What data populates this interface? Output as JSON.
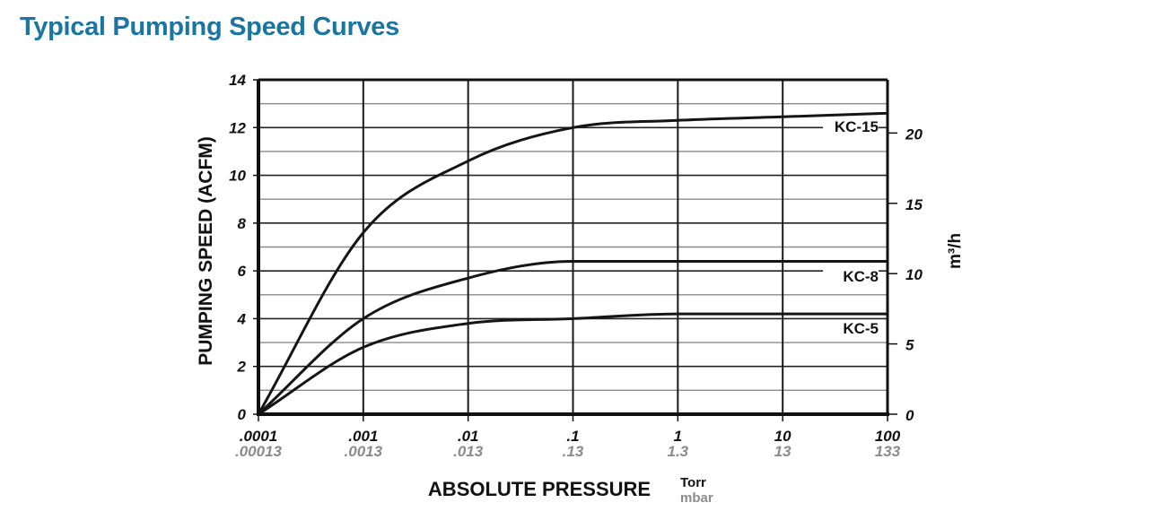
{
  "title": "Typical Pumping Speed Curves",
  "chart_data": {
    "type": "line",
    "title": "Typical Pumping Speed Curves",
    "xlabel": "ABSOLUTE PRESSURE",
    "xlabel_units": [
      "Torr",
      "mbar"
    ],
    "ylabel": "PUMPING SPEED (ACFM)",
    "ylabel_right": "m³/h",
    "x_scale": "log",
    "x": [
      0.0001,
      0.001,
      0.01,
      0.1,
      1,
      10,
      100
    ],
    "x_tick_labels_torr": [
      ".0001",
      ".001",
      ".01",
      ".1",
      "1",
      "10",
      "100"
    ],
    "x_tick_labels_mbar": [
      ".00013",
      ".0013",
      ".013",
      ".13",
      "1.3",
      "13",
      "133"
    ],
    "ylim": [
      0,
      14
    ],
    "y_ticks": [
      0,
      2,
      4,
      6,
      8,
      10,
      12,
      14
    ],
    "y_right_ticks": [
      0,
      5,
      10,
      15,
      20
    ],
    "grid": true,
    "series": [
      {
        "name": "KC-15",
        "values": [
          0,
          7.6,
          10.6,
          12.0,
          12.3,
          12.45,
          12.6
        ]
      },
      {
        "name": "KC-8",
        "values": [
          0,
          4.0,
          5.7,
          6.4,
          6.4,
          6.4,
          6.4
        ]
      },
      {
        "name": "KC-5",
        "values": [
          0,
          2.8,
          3.8,
          4.0,
          4.2,
          4.2,
          4.2
        ]
      }
    ],
    "legend_position": "inline-right"
  }
}
